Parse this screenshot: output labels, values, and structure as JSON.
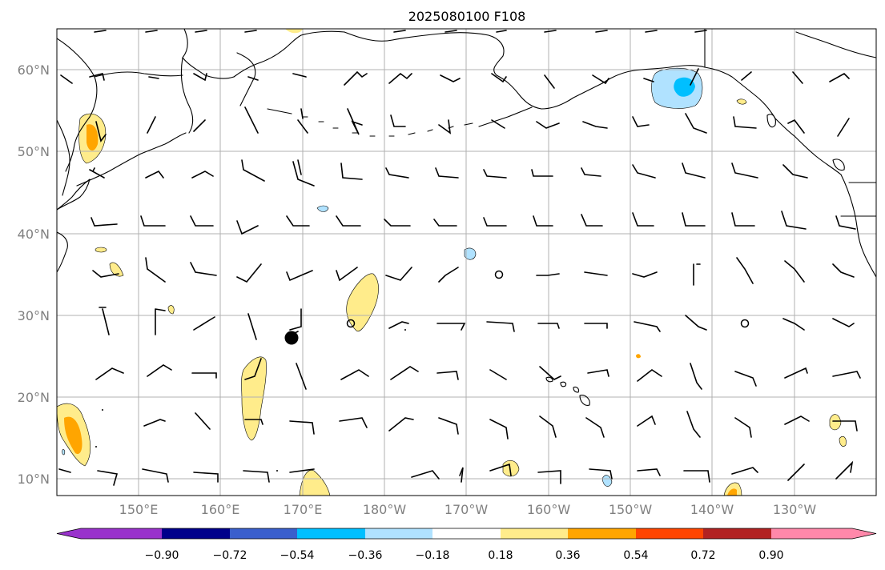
{
  "title": "2025080100 F108",
  "lat_labels": [
    "60°N",
    "50°N",
    "40°N",
    "30°N",
    "20°N",
    "10°N"
  ],
  "lon_labels": [
    "150°E",
    "160°E",
    "170°E",
    "180°W",
    "170°W",
    "160°W",
    "150°W",
    "140°W",
    "130°W"
  ],
  "colorbar": {
    "tick_labels": [
      "−0.90",
      "−0.72",
      "−0.54",
      "−0.36",
      "−0.18",
      "0.18",
      "0.36",
      "0.54",
      "0.72",
      "0.90"
    ],
    "colors": [
      "#9932CC",
      "#00008B",
      "#3A5FCD",
      "#00BFFF",
      "#B0E2FF",
      "#FFFFFF",
      "#FFEC8B",
      "#FFA500",
      "#FF4500",
      "#B22222",
      "#FF88AA"
    ]
  },
  "fills": {
    "light_yellow": "#FFEC8B",
    "orange": "#FFA500",
    "light_blue": "#B0E2FF",
    "deep_sky_blue": "#00BFFF"
  },
  "map_extent": {
    "lon_range_east": [
      140,
      240
    ],
    "lat_range": [
      8,
      65
    ]
  }
}
